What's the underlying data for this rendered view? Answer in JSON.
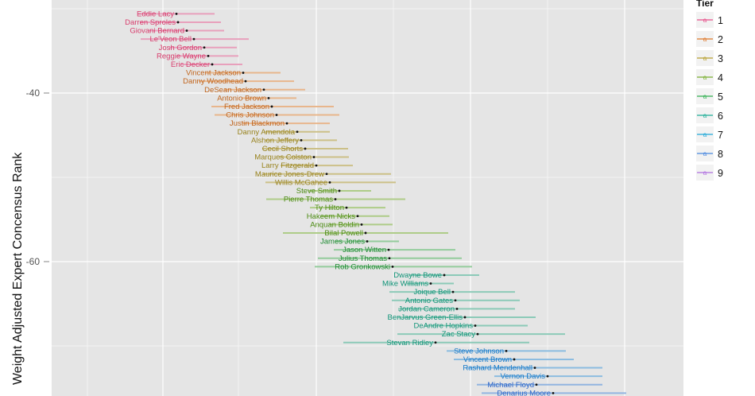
{
  "chart_data": {
    "type": "dot-range",
    "title": "",
    "ylabel": "Weight Adjusted Expert Concensus Rank",
    "xlabel": "",
    "y_ticks": [
      -40,
      -60
    ],
    "ylim": [
      -79.5,
      -29.7
    ],
    "legend": {
      "title": "Tier",
      "placement": "right",
      "key_glyph": "a",
      "entries": [
        {
          "label": "1",
          "color": "#e8508a"
        },
        {
          "label": "2",
          "color": "#e0782a"
        },
        {
          "label": "3",
          "color": "#b8a030"
        },
        {
          "label": "4",
          "color": "#7ab030"
        },
        {
          "label": "5",
          "color": "#30b050"
        },
        {
          "label": "6",
          "color": "#20b098"
        },
        {
          "label": "7",
          "color": "#20a8d8"
        },
        {
          "label": "8",
          "color": "#4a88e0"
        },
        {
          "label": "9",
          "color": "#b070e0"
        }
      ]
    },
    "tier_colors": {
      "1": {
        "text": "#d83c6c",
        "bar": "#e8a0bc"
      },
      "2": {
        "text": "#c0641c",
        "bar": "#e8b68c"
      },
      "3": {
        "text": "#98821c",
        "bar": "#ccc088"
      },
      "4": {
        "text": "#4a8a10",
        "bar": "#aecc88"
      },
      "5": {
        "text": "#1c8a30",
        "bar": "#94cc9c"
      },
      "6": {
        "text": "#109478",
        "bar": "#8ccab8"
      },
      "7": {
        "text": "#1478c8",
        "bar": "#8cbce0"
      },
      "8": {
        "text": "#2a64c8",
        "bar": "#92b4e0"
      }
    },
    "players": [
      {
        "name": "Eddie Lacy",
        "tier": 1,
        "rank": -30.6,
        "low": -30.6,
        "high": -30.6
      },
      {
        "name": "Darren Sproles",
        "tier": 1,
        "rank": -31.6
      },
      {
        "name": "Giovani Bernard",
        "tier": 1,
        "rank": -32.6
      },
      {
        "name": "Le'Veon Bell",
        "tier": 1,
        "rank": -33.6
      },
      {
        "name": "Josh Gordon",
        "tier": 1,
        "rank": -34.6
      },
      {
        "name": "Reggie Wayne",
        "tier": 1,
        "rank": -35.6
      },
      {
        "name": "Eric Decker",
        "tier": 1,
        "rank": -36.6
      },
      {
        "name": "Vincent Jackson",
        "tier": 2,
        "rank": -37.6
      },
      {
        "name": "Danny Woodhead",
        "tier": 2,
        "rank": -38.6
      },
      {
        "name": "DeSean Jackson",
        "tier": 2,
        "rank": -39.6
      },
      {
        "name": "Antonio Brown",
        "tier": 2,
        "rank": -40.6
      },
      {
        "name": "Fred Jackson",
        "tier": 2,
        "rank": -41.6
      },
      {
        "name": "Chris Johnson",
        "tier": 2,
        "rank": -42.6
      },
      {
        "name": "Justin Blackmon",
        "tier": 2,
        "rank": -43.6
      },
      {
        "name": "Danny Amendola",
        "tier": 3,
        "rank": -44.6
      },
      {
        "name": "Alshon Jeffery",
        "tier": 3,
        "rank": -45.6
      },
      {
        "name": "Cecil Shorts",
        "tier": 3,
        "rank": -46.6
      },
      {
        "name": "Marques Colston",
        "tier": 3,
        "rank": -47.6
      },
      {
        "name": "Larry Fitzgerald",
        "tier": 3,
        "rank": -48.6
      },
      {
        "name": "Maurice Jones-Drew",
        "tier": 3,
        "rank": -49.6
      },
      {
        "name": "Willis McGahee",
        "tier": 3,
        "rank": -50.6
      },
      {
        "name": "Steve Smith",
        "tier": 4,
        "rank": -51.6
      },
      {
        "name": "Pierre Thomas",
        "tier": 4,
        "rank": -52.6
      },
      {
        "name": "Ty Hilton",
        "tier": 4,
        "rank": -53.6
      },
      {
        "name": "Hakeem Nicks",
        "tier": 4,
        "rank": -54.6
      },
      {
        "name": "Anquan Boldin",
        "tier": 4,
        "rank": -55.6
      },
      {
        "name": "Bilal Powell",
        "tier": 4,
        "rank": -56.6
      },
      {
        "name": "James Jones",
        "tier": 5,
        "rank": -57.6
      },
      {
        "name": "Jason Witten",
        "tier": 5,
        "rank": -58.6
      },
      {
        "name": "Julius Thomas",
        "tier": 5,
        "rank": -59.6
      },
      {
        "name": "Rob Gronkowski",
        "tier": 5,
        "rank": -60.6
      },
      {
        "name": "Dwayne Bowe",
        "tier": 6,
        "rank": -61.6
      },
      {
        "name": "Mike Williams",
        "tier": 6,
        "rank": -62.6
      },
      {
        "name": "Joique Bell",
        "tier": 6,
        "rank": -63.6
      },
      {
        "name": "Antonio Gates",
        "tier": 6,
        "rank": -64.6
      },
      {
        "name": "Jordan Cameron",
        "tier": 6,
        "rank": -65.6
      },
      {
        "name": "BenJarvus Green-Ellis",
        "tier": 6,
        "rank": -66.6
      },
      {
        "name": "DeAndre Hopkins",
        "tier": 6,
        "rank": -67.6
      },
      {
        "name": "Zac Stacy",
        "tier": 6,
        "rank": -68.6
      },
      {
        "name": "Stevan Ridley",
        "tier": 6,
        "rank": -69.6
      },
      {
        "name": "Steve Johnson",
        "tier": 7,
        "rank": -70.6
      },
      {
        "name": "Vincent Brown",
        "tier": 7,
        "rank": -71.6
      },
      {
        "name": "Rashard Mendenhall",
        "tier": 7,
        "rank": -72.6
      },
      {
        "name": "Vernon Davis",
        "tier": 7,
        "rank": -73.6
      },
      {
        "name": "Michael Floyd",
        "tier": 8,
        "rank": -74.6
      },
      {
        "name": "Denarius Moore",
        "tier": 8,
        "rank": -75.6
      }
    ]
  }
}
